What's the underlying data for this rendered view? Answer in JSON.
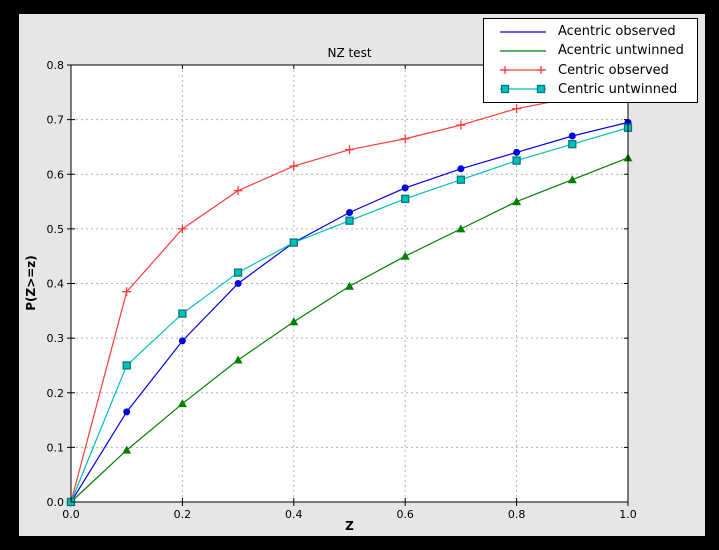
{
  "chart_data": {
    "type": "line",
    "title": "NZ test",
    "xlabel": "Z",
    "ylabel": "P(Z>=z)",
    "xlim": [
      0.0,
      1.0
    ],
    "ylim": [
      0.0,
      0.8
    ],
    "xticks": [
      0.0,
      0.2,
      0.4,
      0.6,
      0.8,
      1.0
    ],
    "xtick_labels": [
      "0.0",
      "0.2",
      "0.4",
      "0.6",
      "0.8",
      "1.0"
    ],
    "yticks": [
      0.0,
      0.1,
      0.2,
      0.3,
      0.4,
      0.5,
      0.6,
      0.7,
      0.8
    ],
    "ytick_labels": [
      "0.0",
      "0.1",
      "0.2",
      "0.3",
      "0.4",
      "0.5",
      "0.6",
      "0.7",
      "0.8"
    ],
    "grid": "dashed",
    "legend_position": "upper right",
    "x": [
      0.0,
      0.1,
      0.2,
      0.3,
      0.4,
      0.5,
      0.6,
      0.7,
      0.8,
      0.9,
      1.0
    ],
    "series": [
      {
        "name": "Acentric observed",
        "color": "#0000e6",
        "marker": "circle",
        "legend_marker": false,
        "values": [
          0.0,
          0.165,
          0.295,
          0.4,
          0.475,
          0.53,
          0.575,
          0.61,
          0.64,
          0.67,
          0.695
        ]
      },
      {
        "name": "Acentric untwinned",
        "color": "#008000",
        "marker": "triangle",
        "legend_marker": false,
        "values": [
          0.0,
          0.095,
          0.18,
          0.26,
          0.33,
          0.395,
          0.45,
          0.5,
          0.55,
          0.59,
          0.63
        ]
      },
      {
        "name": "Centric observed",
        "color": "#ff3b3b",
        "marker": "plus",
        "legend_marker": true,
        "values": [
          0.0,
          0.385,
          0.5,
          0.57,
          0.615,
          0.645,
          0.665,
          0.69,
          0.72,
          0.74,
          0.755
        ]
      },
      {
        "name": "Centric untwinned",
        "color": "#00bfbf",
        "marker": "square",
        "marker_edge": "#007a7a",
        "legend_marker": true,
        "values": [
          0.0,
          0.25,
          0.345,
          0.42,
          0.475,
          0.515,
          0.555,
          0.59,
          0.625,
          0.655,
          0.685
        ]
      }
    ],
    "colors": {
      "outer_bg": "#000000",
      "figure_bg": "#e6e6e6",
      "plot_bg": "#ffffff",
      "grid": "#b3b3b3",
      "spine": "#000000",
      "tick_label": "#000000"
    }
  }
}
